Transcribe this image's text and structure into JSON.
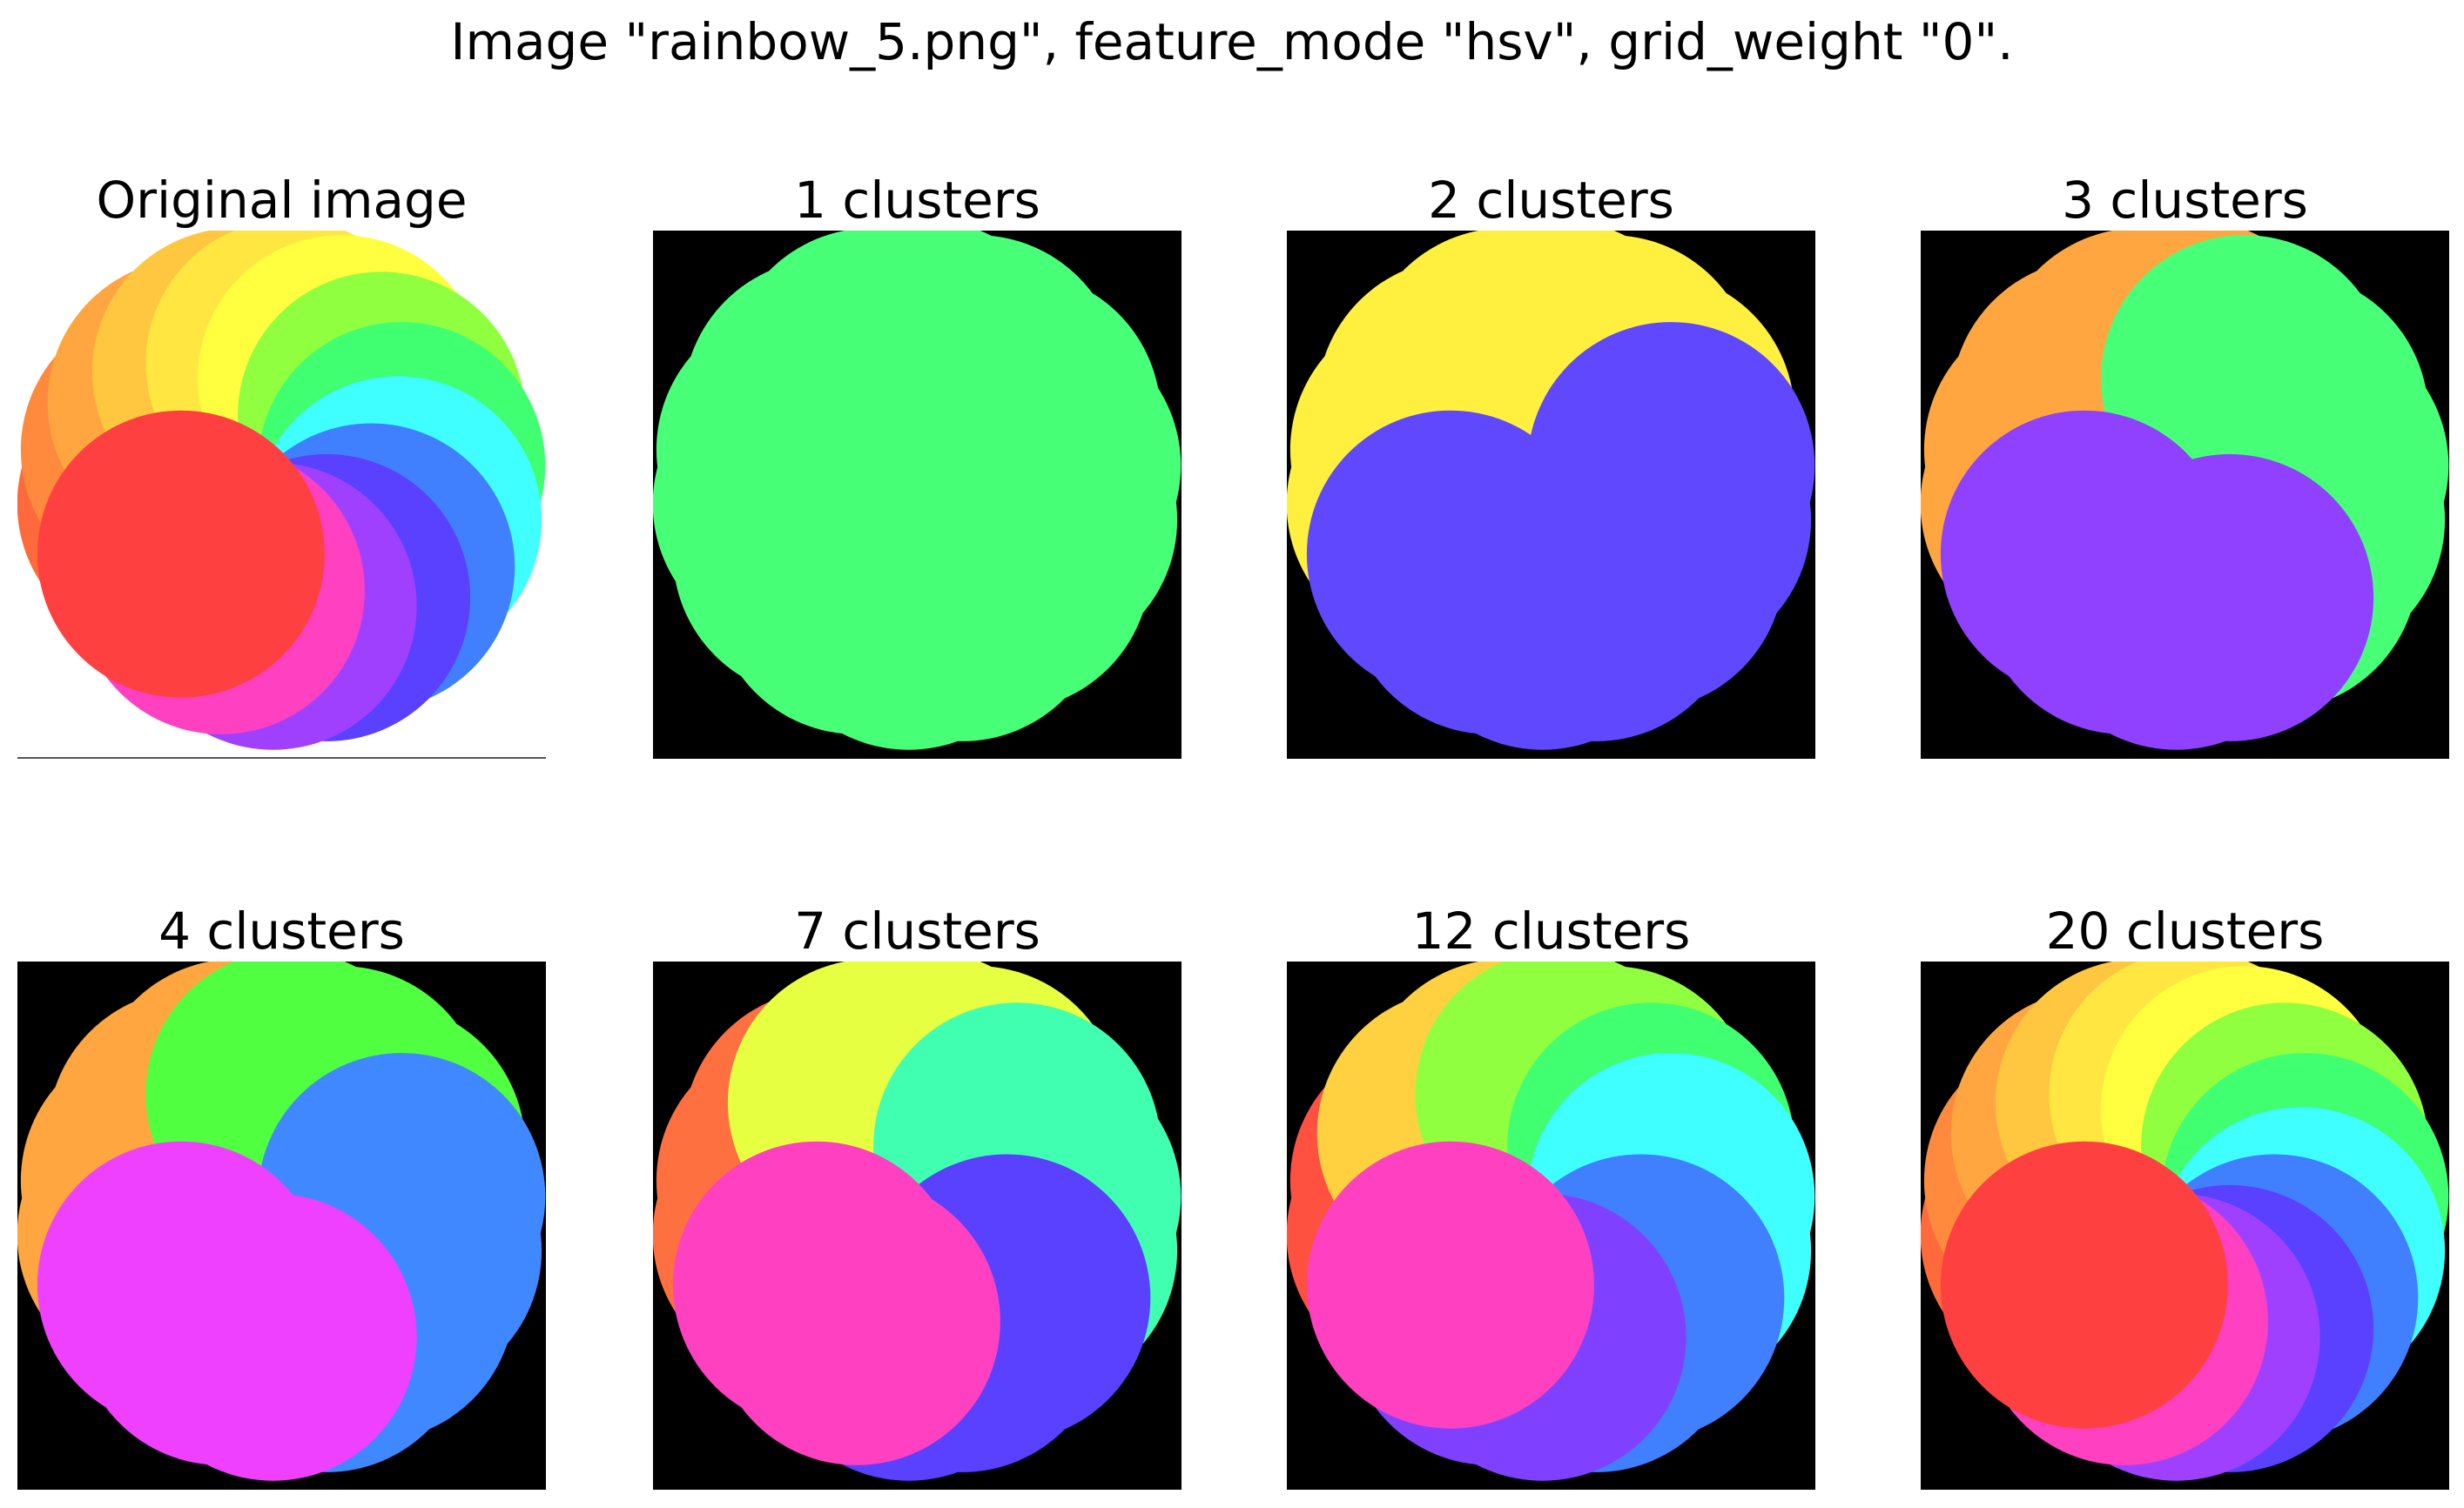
{
  "figure": {
    "title": "Image \"rainbow_5.png\", feature_mode \"hsv\", grid_weight \"0\"."
  },
  "panels": [
    {
      "title": "Original image",
      "mode": "original",
      "palette": [
        "#ff6a3d",
        "#ff8a3d",
        "#ffa640",
        "#ffc640",
        "#ffe640",
        "#ffff40",
        "#90ff40",
        "#40ff70",
        "#40ffff",
        "#4080ff",
        "#5a40ff",
        "#a040ff",
        "#ff40c0",
        "#ff4040"
      ]
    },
    {
      "title": "1 clusters",
      "mode": "segments",
      "palette": [
        "#48ff78"
      ]
    },
    {
      "title": "2 clusters",
      "mode": "segments",
      "palette": [
        "#fff040",
        "#6048ff"
      ]
    },
    {
      "title": "3 clusters",
      "mode": "segments",
      "palette": [
        "#ffa640",
        "#48ff78",
        "#9040ff"
      ]
    },
    {
      "title": "4 clusters",
      "mode": "segments",
      "palette": [
        "#ffa640",
        "#50ff40",
        "#4088ff",
        "#f040ff"
      ]
    },
    {
      "title": "7 clusters",
      "mode": "segments",
      "palette": [
        "#ff7040",
        "#e6ff40",
        "#40ffb0",
        "#5a40ff",
        "#ff40c0"
      ]
    },
    {
      "title": "12 clusters",
      "mode": "segments",
      "palette": [
        "#ff5040",
        "#ffd040",
        "#90ff40",
        "#40ff70",
        "#40ffff",
        "#4080ff",
        "#8040ff",
        "#ff40c0"
      ]
    },
    {
      "title": "20 clusters",
      "mode": "segments",
      "palette": [
        "#ff6a3d",
        "#ff8a3d",
        "#ffa640",
        "#ffc640",
        "#ffe640",
        "#ffff40",
        "#90ff40",
        "#40ff70",
        "#40ffff",
        "#4080ff",
        "#5a40ff",
        "#a040ff",
        "#ff40c0",
        "#ff4040"
      ]
    }
  ]
}
